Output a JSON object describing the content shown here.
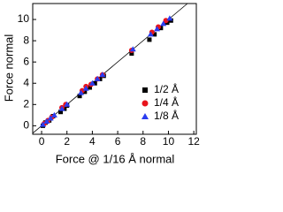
{
  "chart_data": {
    "type": "scatter",
    "x_label": "Force @ 1/16 Å normal",
    "y_label": "Force normal",
    "xlim": [
      -0.7,
      12.2
    ],
    "ylim": [
      -0.8,
      11.5
    ],
    "xticks": [
      0,
      2,
      4,
      6,
      8,
      10,
      12
    ],
    "yticks": [
      0,
      2,
      4,
      6,
      8,
      10
    ],
    "reference_line": true,
    "legend": "lower right",
    "series": [
      {
        "name": "1/2 Å",
        "color": "#000000",
        "marker": "square",
        "x": [
          0.1,
          0.3,
          0.6,
          0.9,
          1.5,
          1.8,
          2.0,
          3.0,
          3.4,
          3.8,
          4.2,
          4.6,
          4.9,
          7.1,
          8.5,
          8.9,
          9.4,
          9.9,
          10.2
        ],
        "values": [
          0.0,
          0.3,
          0.5,
          0.9,
          1.3,
          1.6,
          1.9,
          2.8,
          3.2,
          3.6,
          4.0,
          4.4,
          4.7,
          6.8,
          8.1,
          8.6,
          9.2,
          9.7,
          9.9
        ]
      },
      {
        "name": "1/4 Å",
        "color": "#e8141c",
        "marker": "circle",
        "x": [
          0.2,
          0.5,
          0.8,
          1.6,
          1.9,
          3.2,
          3.5,
          3.9,
          4.4,
          4.8,
          7.1,
          8.7,
          9.2,
          9.8
        ],
        "values": [
          0.2,
          0.5,
          0.8,
          1.7,
          2.0,
          3.3,
          3.7,
          3.9,
          4.4,
          4.8,
          7.1,
          8.8,
          9.3,
          9.9
        ]
      },
      {
        "name": "1/8 Å",
        "color": "#2a3cf0",
        "marker": "triangle",
        "x": [
          0.1,
          0.4,
          0.7,
          1.0,
          1.6,
          2.0,
          3.1,
          3.5,
          4.0,
          4.4,
          4.8,
          7.2,
          8.6,
          9.1,
          9.6,
          10.1
        ],
        "values": [
          0.1,
          0.4,
          0.7,
          1.0,
          1.6,
          2.0,
          3.1,
          3.5,
          4.0,
          4.4,
          4.8,
          7.2,
          8.6,
          9.1,
          9.6,
          10.1
        ]
      }
    ]
  }
}
